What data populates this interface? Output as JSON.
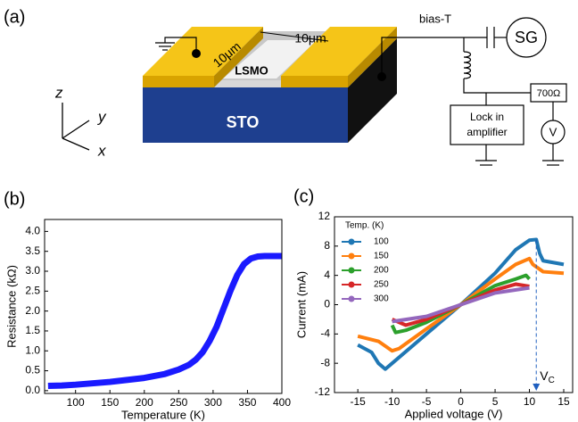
{
  "diagram": {
    "label": "(a)",
    "width_top": "10μm",
    "width_side": "10μm",
    "film": "LSMO",
    "substrate": "STO",
    "bias_t": "bias-T",
    "source": "SG",
    "resistor": "700Ω",
    "lockin": [
      "Lock in",
      "amplifier"
    ],
    "voltmeter": "V",
    "axes": [
      "z",
      "y",
      "x"
    ]
  },
  "chart_data": [
    {
      "type": "line",
      "panel_label": "(b)",
      "x_label": "Temperature (K)",
      "y_label": "Resistance (kΩ)",
      "color": "#1a1aff",
      "x": [
        60,
        80,
        100,
        150,
        200,
        230,
        250,
        265,
        275,
        285,
        295,
        305,
        315,
        325,
        335,
        345,
        355,
        365,
        375,
        390,
        400
      ],
      "values": [
        0.12,
        0.13,
        0.15,
        0.22,
        0.32,
        0.42,
        0.53,
        0.65,
        0.78,
        0.97,
        1.25,
        1.6,
        2.05,
        2.5,
        2.9,
        3.18,
        3.32,
        3.37,
        3.38,
        3.38,
        3.38
      ],
      "xlim": [
        55,
        400
      ],
      "ylim": [
        -0.07,
        4.3
      ],
      "xticks": [
        100,
        150,
        200,
        250,
        300,
        350,
        400
      ],
      "yticks": [
        {
          "value": 0,
          "label": "0.0"
        },
        0.5,
        {
          "value": 1,
          "label": "1.0"
        },
        1.5,
        {
          "value": 2,
          "label": "2.0"
        },
        2.5,
        {
          "value": 3,
          "label": "3.0"
        },
        3.5,
        {
          "value": 4,
          "label": "4.0"
        }
      ]
    },
    {
      "type": "line",
      "panel_label": "(c)",
      "x_label": "Applied voltage (V)",
      "y_label": "Current (mA)",
      "legend_title": "Temp. (K)",
      "legend": "top left",
      "annotation": {
        "main": "V",
        "sub": "C",
        "x": 11
      },
      "xlim": [
        -18.4,
        16.3
      ],
      "ylim": [
        -12,
        12
      ],
      "xticks": [
        -15,
        -10,
        -5,
        0,
        5,
        10,
        15
      ],
      "yticks": [
        -12,
        -8,
        -4,
        0,
        4,
        8,
        12
      ],
      "series": [
        {
          "name": "100",
          "color": "#1f77b4",
          "x": [
            -15,
            -13,
            -12,
            -11,
            -10,
            -5,
            0,
            5,
            8,
            10,
            11,
            11.5,
            12,
            15
          ],
          "values": [
            -5.5,
            -6.5,
            -8,
            -8.8,
            -8,
            -4,
            0,
            4.3,
            7.5,
            8.8,
            8.9,
            7,
            6,
            5.5
          ]
        },
        {
          "name": "150",
          "color": "#ff7f0e",
          "x": [
            -15,
            -12,
            -10,
            -9,
            -5,
            0,
            5,
            8,
            10,
            10.5,
            12,
            15
          ],
          "values": [
            -4.3,
            -5,
            -6.3,
            -6,
            -3.3,
            0,
            3.5,
            5.5,
            6.3,
            5.5,
            4.5,
            4.3
          ]
        },
        {
          "name": "200",
          "color": "#2ca02c",
          "x": [
            -10,
            -9.5,
            -8,
            -5,
            0,
            5,
            8,
            9.5,
            10
          ],
          "values": [
            -2.8,
            -3.8,
            -3.5,
            -2.4,
            0,
            2.6,
            3.5,
            4,
            3.5
          ]
        },
        {
          "name": "250",
          "color": "#d62728",
          "x": [
            -10,
            -8,
            -5,
            0,
            5,
            8,
            10
          ],
          "values": [
            -2,
            -2.8,
            -2,
            0,
            2,
            2.8,
            2.5
          ]
        },
        {
          "name": "300",
          "color": "#9467bd",
          "x": [
            -10,
            -5,
            0,
            5,
            10
          ],
          "values": [
            -2.3,
            -1.6,
            0,
            1.6,
            2.3
          ]
        }
      ]
    }
  ]
}
